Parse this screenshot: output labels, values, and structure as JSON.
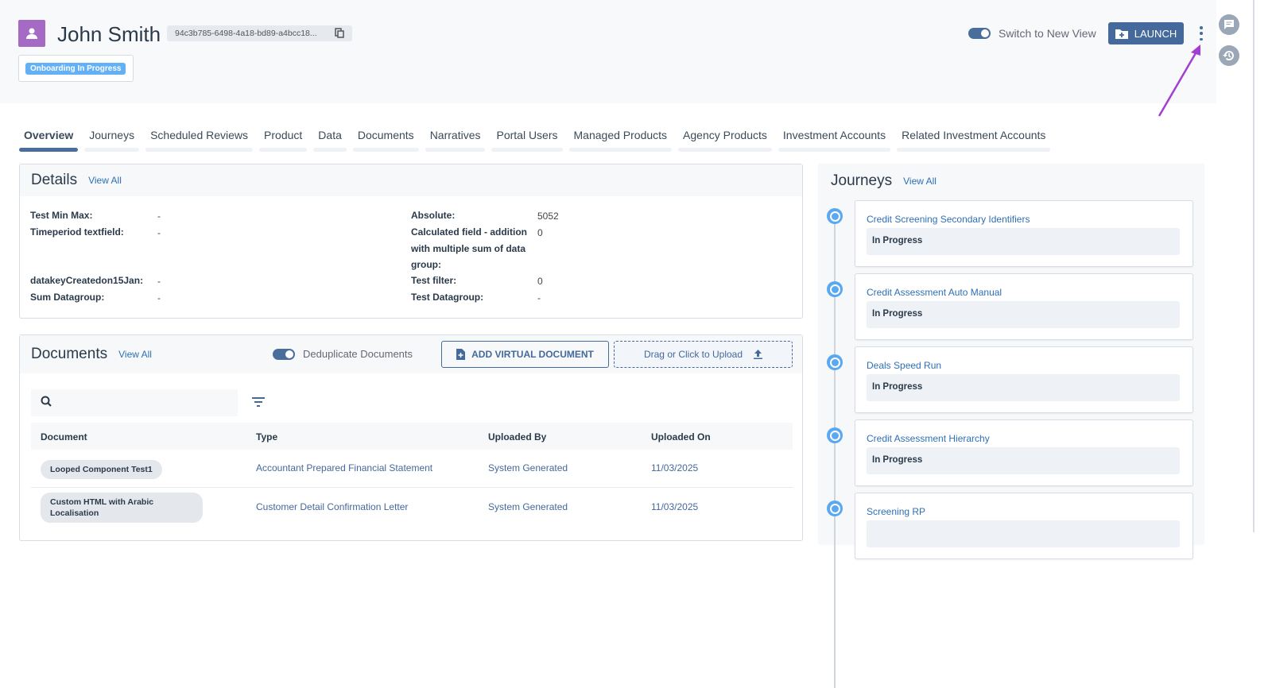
{
  "header": {
    "name": "John Smith",
    "id": "94c3b785-6498-4a18-bd89-a4bcc18...",
    "status": "Onboarding In Progress",
    "switch_label": "Switch to New View",
    "launch": "LAUNCH"
  },
  "tabs": [
    "Overview",
    "Journeys",
    "Scheduled Reviews",
    "Product",
    "Data",
    "Documents",
    "Narratives",
    "Portal Users",
    "Managed Products",
    "Agency Products",
    "Investment Accounts",
    "Related Investment Accounts"
  ],
  "details": {
    "title": "Details",
    "view_all": "View All",
    "left": [
      {
        "label": "Test Min Max:",
        "value": "-"
      },
      {
        "label": "Timeperiod textfield:",
        "value": "-"
      },
      {
        "label": "datakeyCreatedon15Jan:",
        "value": "-"
      },
      {
        "label": "Sum Datagroup:",
        "value": "-"
      }
    ],
    "right": [
      {
        "label": "Absolute:",
        "value": "5052"
      },
      {
        "label": "Calculated field - addition with multiple sum of data group:",
        "value": "0"
      },
      {
        "label": "Test filter:",
        "value": "0"
      },
      {
        "label": "Test Datagroup:",
        "value": "-"
      }
    ]
  },
  "documents": {
    "title": "Documents",
    "view_all": "View All",
    "dedup_label": "Deduplicate Documents",
    "add_virtual": "ADD VIRTUAL DOCUMENT",
    "upload": "Drag or Click to Upload",
    "columns": [
      "Document",
      "Type",
      "Uploaded By",
      "Uploaded On"
    ],
    "rows": [
      [
        "Looped Component Test1",
        "Accountant Prepared Financial Statement",
        "System Generated",
        "11/03/2025"
      ],
      [
        "Custom HTML with Arabic Localisation",
        "Customer Detail Confirmation Letter",
        "System Generated",
        "11/03/2025"
      ]
    ]
  },
  "journeys": {
    "title": "Journeys",
    "view_all": "View All",
    "items": [
      {
        "name": "Credit Screening Secondary Identifiers",
        "status": "In Progress"
      },
      {
        "name": "Credit Assessment Auto Manual",
        "status": "In Progress"
      },
      {
        "name": "Deals Speed Run",
        "status": "In Progress"
      },
      {
        "name": "Credit Assessment Hierarchy",
        "status": "In Progress"
      },
      {
        "name": "Screening RP",
        "status": ""
      }
    ]
  },
  "colors": {
    "accent": "#44699a",
    "avatar": "#a56ac3",
    "status_badge": "#62b0f5",
    "annotation_arrow": "#a23fd0"
  }
}
